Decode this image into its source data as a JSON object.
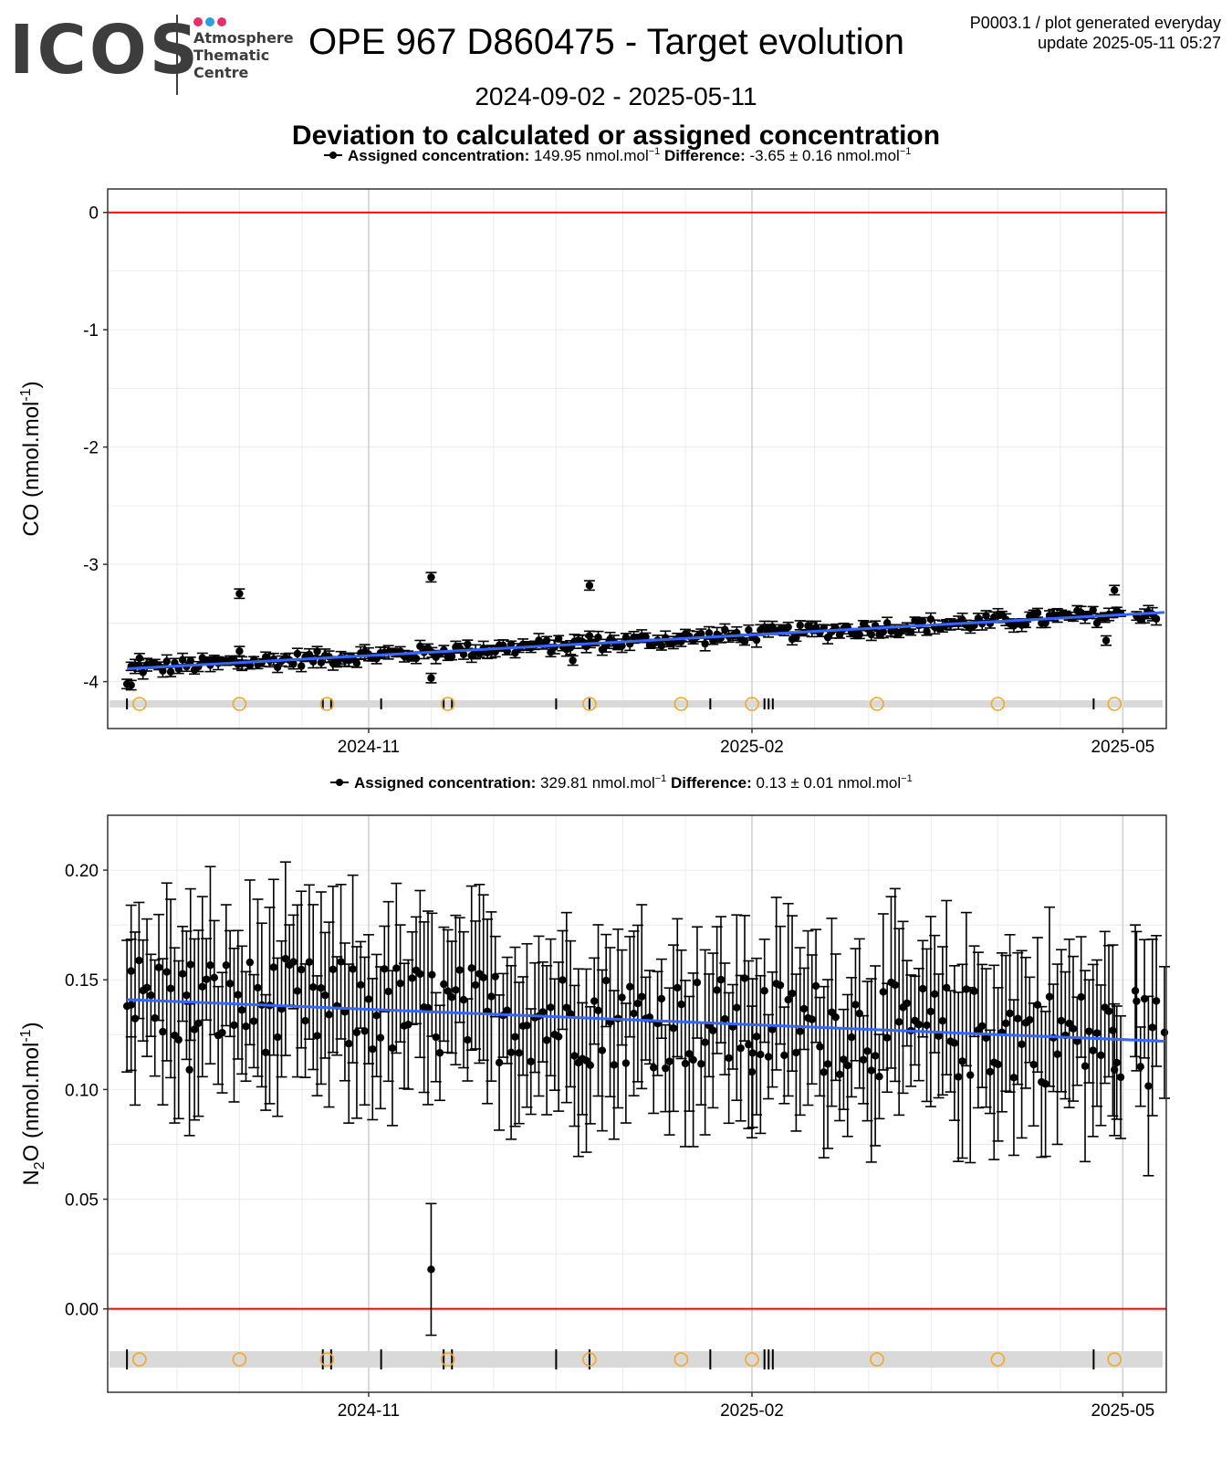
{
  "header": {
    "logo": {
      "word": "ICOS",
      "lines": [
        "Atmosphere",
        "Thematic",
        "Centre"
      ],
      "dot_colors": [
        "#e5306f",
        "#2d9fe0",
        "#e5306f"
      ]
    },
    "title": "OPE 967 D860475 - Target evolution",
    "meta_line1": "P0003.1 / plot generated everyday",
    "meta_line2": "update  2025-05-11 05:27",
    "period": "2024-09-02 - 2025-05-11",
    "subtitle": "Deviation to calculated or assigned concentration"
  },
  "colors": {
    "trend": "#3366ff",
    "zero_line": "#ff0000",
    "points": "#000000",
    "event_circle": "#f5a623",
    "event_strip": "#d9d9d9",
    "grid": "#ebebeb"
  },
  "chart_data": [
    {
      "type": "scatter",
      "ylabel": "CO (nmol.mol",
      "ylabel_sup": "-1",
      "ylabel_end": ")",
      "legend": {
        "label": "Assigned concentration:",
        "value": "149.95 nmol.mol",
        "diff_label": "Difference:",
        "diff_value": "-3.65 ± 0.16 nmol.mol",
        "sup": "−1"
      },
      "xlim": [
        "2024-09-02",
        "2025-05-11"
      ],
      "ylim": [
        -4.4,
        0.2
      ],
      "yticks": [
        0,
        -1,
        -2,
        -3,
        -4
      ],
      "ytick_labels": [
        "0",
        "-1",
        "-2",
        "-3",
        "-4"
      ],
      "xticks": [
        "2024-11-01",
        "2025-02-01",
        "2025-05-01"
      ],
      "xtick_labels": [
        "2024-11",
        "2025-02",
        "2025-05"
      ],
      "trend": {
        "x": [
          "2024-09-04",
          "2025-05-11"
        ],
        "y": [
          -3.89,
          -3.41
        ]
      },
      "zero_line": 0,
      "y_range": [
        -3.92,
        -3.47
      ],
      "error": 0.04,
      "outliers": [
        {
          "x": "2024-09-04",
          "y": -4.02
        },
        {
          "x": "2024-09-05",
          "y": -4.03
        },
        {
          "x": "2024-09-07",
          "y": -3.8
        },
        {
          "x": "2024-10-01",
          "y": -3.25
        },
        {
          "x": "2024-10-01",
          "y": -3.74
        },
        {
          "x": "2024-11-16",
          "y": -3.11
        },
        {
          "x": "2024-11-16",
          "y": -3.97
        },
        {
          "x": "2024-12-24",
          "y": -3.18
        },
        {
          "x": "2024-12-24",
          "y": -3.61
        },
        {
          "x": "2024-12-20",
          "y": -3.82
        },
        {
          "x": "2025-01-15",
          "y": -3.66
        },
        {
          "x": "2025-04-27",
          "y": -3.65
        },
        {
          "x": "2025-04-29",
          "y": -3.22
        }
      ],
      "event_circles": [
        "2024-09-07",
        "2024-10-01",
        "2024-10-22",
        "2024-11-20",
        "2024-12-24",
        "2025-01-15",
        "2025-02-01",
        "2025-03-03",
        "2025-04-01",
        "2025-04-29"
      ],
      "event_ticks": [
        "2024-09-04",
        "2024-10-21",
        "2024-10-23",
        "2024-11-04",
        "2024-11-19",
        "2024-11-21",
        "2024-12-16",
        "2024-12-24",
        "2025-01-22",
        "2025-02-04",
        "2025-02-05",
        "2025-02-06",
        "2025-04-24"
      ]
    },
    {
      "type": "scatter",
      "ylabel": "N",
      "ylabel_sub": "2",
      "ylabel_mid": "O (nmol.mol",
      "ylabel_sup": "-1",
      "ylabel_end": ")",
      "legend": {
        "label": "Assigned concentration:",
        "value": "329.81 nmol.mol",
        "diff_label": "Difference:",
        "diff_value": "0.13 ± 0.01 nmol.mol",
        "sup": "−1"
      },
      "xlim": [
        "2024-09-02",
        "2025-05-11"
      ],
      "ylim": [
        -0.038,
        0.225
      ],
      "yticks": [
        0.2,
        0.15,
        0.1,
        0.05,
        0
      ],
      "ytick_labels": [
        "0.20",
        "0.15",
        "0.10",
        "0.05",
        "0.00"
      ],
      "xticks": [
        "2024-11-01",
        "2025-02-01",
        "2025-05-01"
      ],
      "xtick_labels": [
        "2024-11",
        "2025-02",
        "2025-05"
      ],
      "trend": {
        "x": [
          "2024-09-04",
          "2025-05-11"
        ],
        "y": [
          0.141,
          0.122
        ]
      },
      "zero_line": 0,
      "y_range": [
        0.105,
        0.16
      ],
      "error": 0.03,
      "outliers": [
        {
          "x": "2024-09-04",
          "y": 0.138
        },
        {
          "x": "2024-09-05",
          "y": 0.154
        },
        {
          "x": "2024-09-19",
          "y": 0.109
        },
        {
          "x": "2024-11-16",
          "y": 0.018
        },
        {
          "x": "2025-02-01",
          "y": 0.108
        },
        {
          "x": "2025-04-29",
          "y": 0.109
        },
        {
          "x": "2025-05-04",
          "y": 0.145
        },
        {
          "x": "2025-05-11",
          "y": 0.126
        }
      ],
      "event_circles": [
        "2024-09-07",
        "2024-10-01",
        "2024-10-22",
        "2024-11-20",
        "2024-12-24",
        "2025-01-15",
        "2025-02-01",
        "2025-03-03",
        "2025-04-01",
        "2025-04-29"
      ],
      "event_ticks": [
        "2024-09-04",
        "2024-10-21",
        "2024-10-23",
        "2024-11-04",
        "2024-11-19",
        "2024-11-21",
        "2024-12-16",
        "2024-12-24",
        "2025-01-22",
        "2025-02-04",
        "2025-02-05",
        "2025-02-06",
        "2025-04-24"
      ]
    }
  ]
}
